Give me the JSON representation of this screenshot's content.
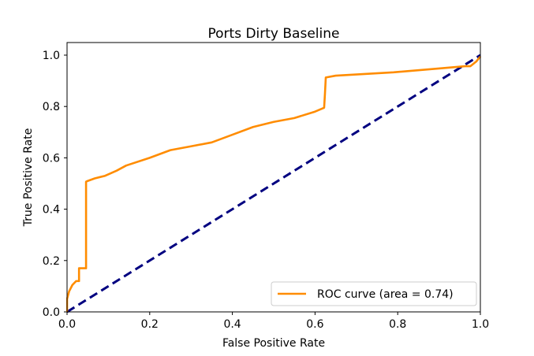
{
  "chart_data": {
    "type": "line",
    "title": "Ports Dirty Baseline",
    "xlabel": "False Positive Rate",
    "ylabel": "True Positive Rate",
    "xlim": [
      0,
      1
    ],
    "ylim": [
      0,
      1.05
    ],
    "xticks": [
      "0.0",
      "0.2",
      "0.4",
      "0.6",
      "0.8",
      "1.0"
    ],
    "yticks": [
      "0.0",
      "0.2",
      "0.4",
      "0.6",
      "0.8",
      "1.0"
    ],
    "grid": false,
    "legend_position": "lower-right",
    "series": [
      {
        "name": "ROC curve (area = 0.74)",
        "color": "#ff8c00",
        "style": "solid",
        "x": [
          0,
          0,
          0.005,
          0.013,
          0.022,
          0.029,
          0.029,
          0.046,
          0.046,
          0.05,
          0.067,
          0.092,
          0.12,
          0.143,
          0.2,
          0.25,
          0.3,
          0.35,
          0.4,
          0.45,
          0.5,
          0.55,
          0.6,
          0.622,
          0.624,
          0.626,
          0.65,
          0.79,
          0.9,
          0.963,
          0.976,
          0.99,
          1.0
        ],
        "y": [
          0,
          0.05,
          0.08,
          0.105,
          0.12,
          0.12,
          0.17,
          0.17,
          0.507,
          0.51,
          0.52,
          0.53,
          0.55,
          0.57,
          0.6,
          0.63,
          0.645,
          0.66,
          0.69,
          0.72,
          0.74,
          0.755,
          0.78,
          0.795,
          0.85,
          0.913,
          0.92,
          0.933,
          0.948,
          0.957,
          0.957,
          0.975,
          0.995
        ]
      },
      {
        "color": "#000080",
        "style": "dashed",
        "x": [
          0,
          1
        ],
        "y": [
          0,
          1
        ]
      }
    ]
  }
}
